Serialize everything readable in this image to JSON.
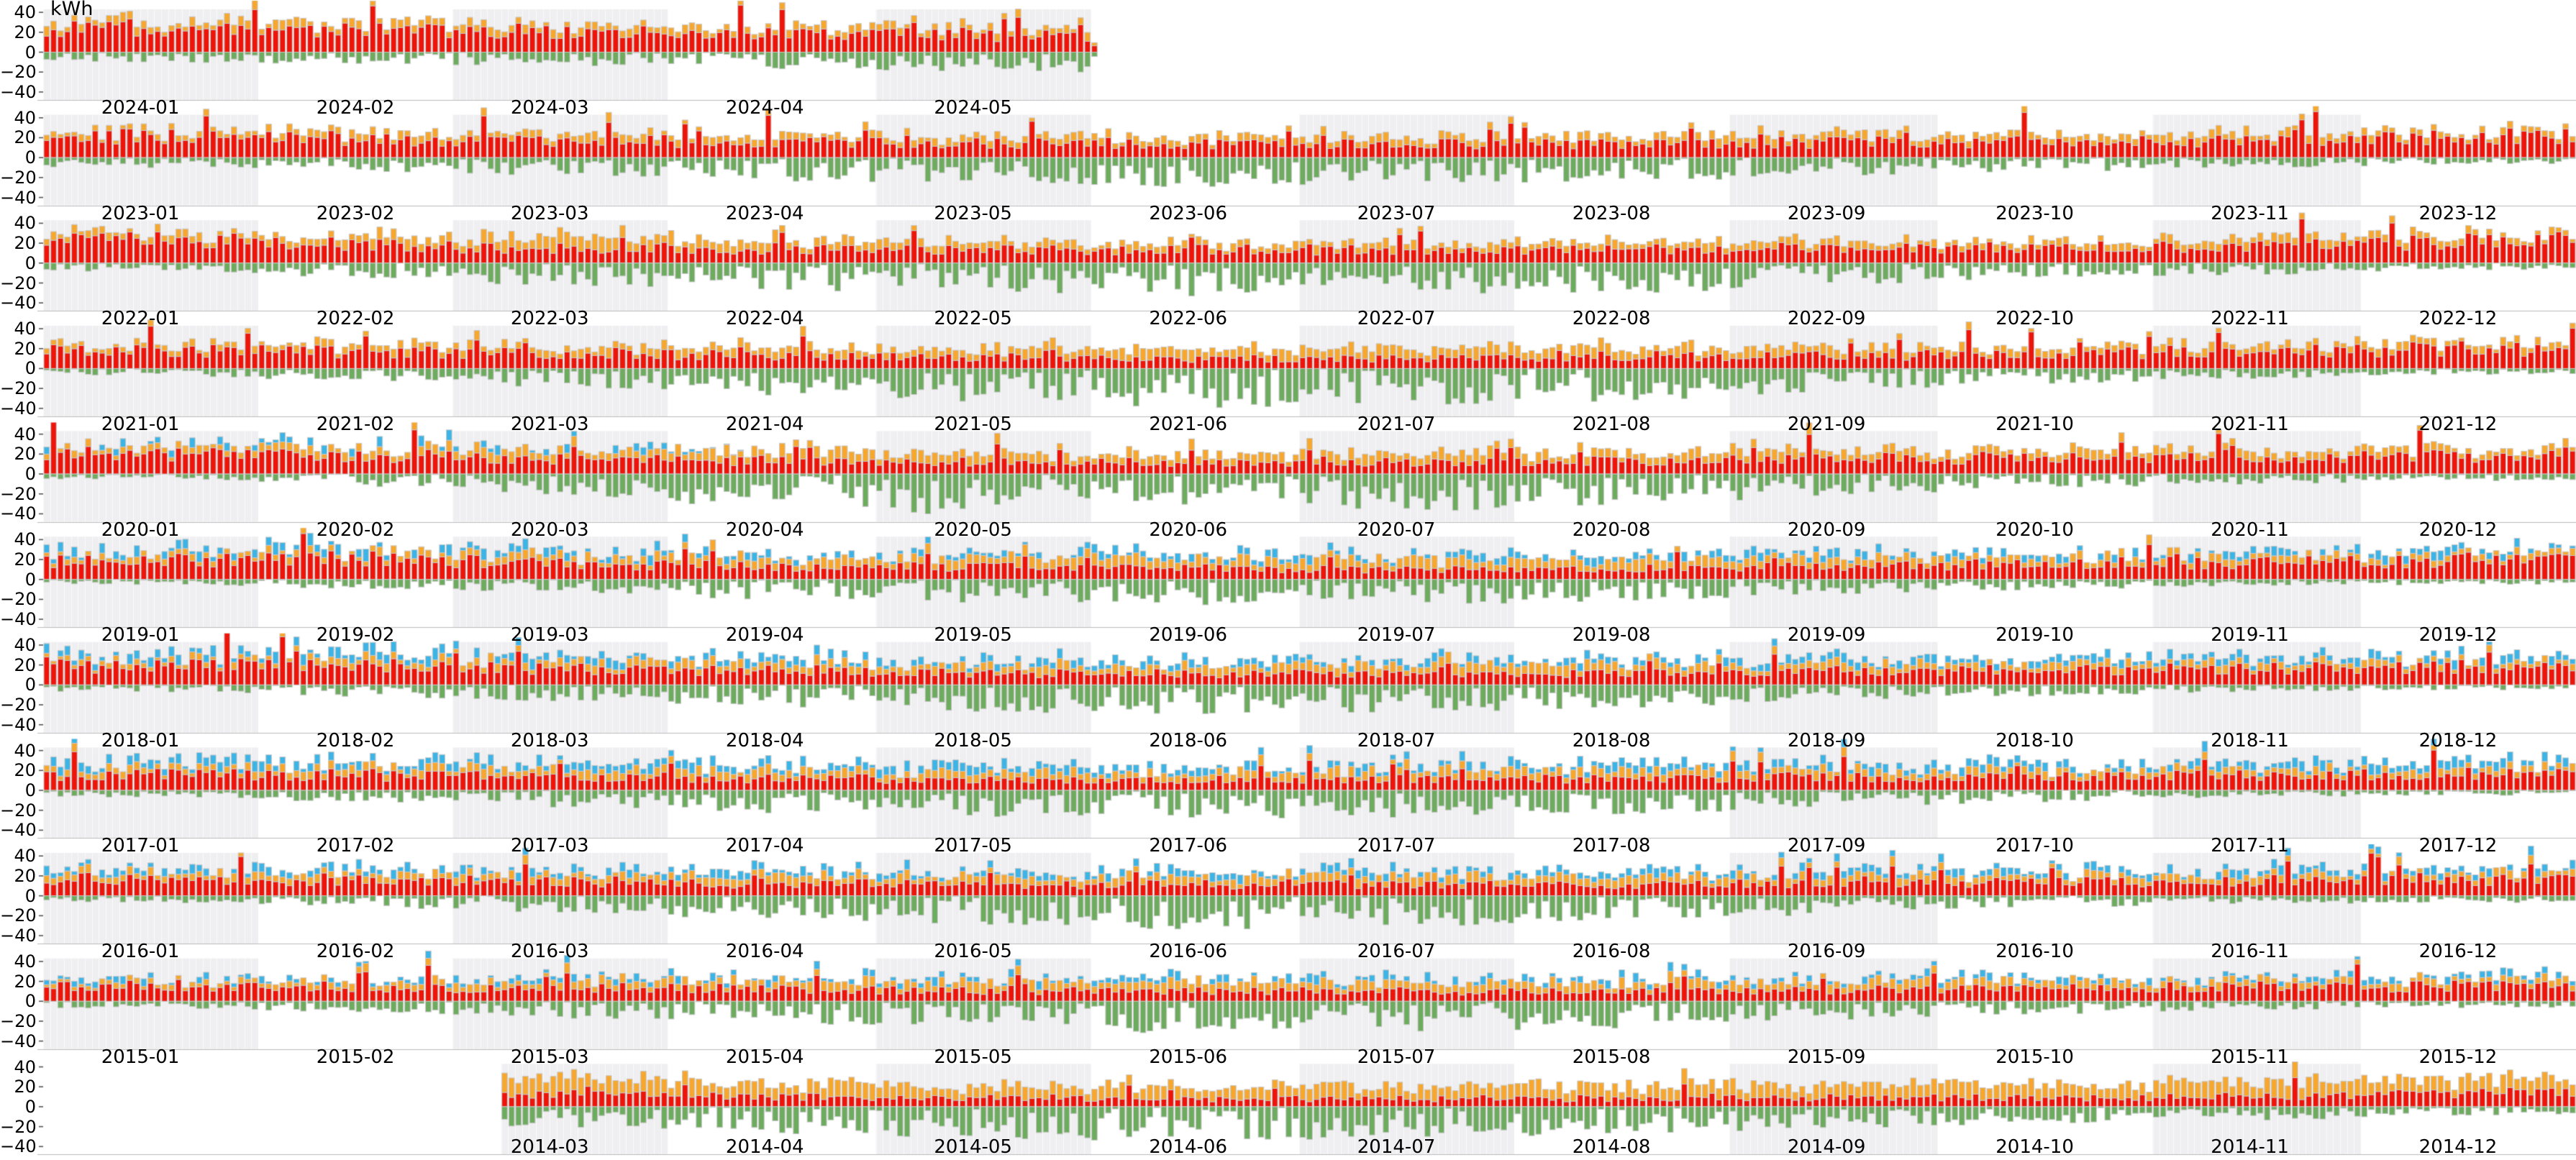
{
  "chart_data": {
    "type": "bar",
    "subtype": "stacked-daily-bars-by-year-rows",
    "title": "",
    "unit": "kWh",
    "xlabel": "",
    "ylabel": "kWh",
    "yticks": [
      40,
      20,
      0,
      -20,
      -40
    ],
    "ylim": [
      -48,
      43
    ],
    "grid": "horizontal-row-separators-only",
    "legend": "none",
    "month_shading": "odd-months-light-gray",
    "month_label_format": "YYYY-MM",
    "bar_edge_color": "#c8c8c8",
    "shade_color": "#efeff1",
    "shade_stripe_color": "rgba(255,255,255,0.65)",
    "separator_color": "#bcbcbc",
    "tick_color": "#555555",
    "series": [
      {
        "name": "consumption-red",
        "color": "#ee1409"
      },
      {
        "name": "secondary-orange",
        "color": "#f7a72e"
      },
      {
        "name": "tertiary-blue",
        "color": "#3cb4e6"
      },
      {
        "name": "production-green-negative",
        "color": "#6dab5e"
      }
    ],
    "gen": {
      "red_spike_chance": 0.045,
      "red_spike_scale": 1.6,
      "green_zero_chance": 0.08
    },
    "rows": [
      {
        "year": 2024,
        "start_day": 0,
        "end_day": 151,
        "blue_p": 0,
        "monthly": {
          "red": [
            23,
            22,
            20,
            18,
            17,
            0,
            0,
            0,
            0,
            0,
            0,
            0
          ],
          "orange": [
            7,
            7,
            6,
            6,
            6,
            0,
            0,
            0,
            0,
            0,
            0,
            0
          ],
          "blue": [
            0,
            0,
            0,
            0,
            0,
            0,
            0,
            0,
            0,
            0,
            0,
            0
          ],
          "green": [
            6,
            7,
            8,
            10,
            12,
            0,
            0,
            0,
            0,
            0,
            0,
            0
          ]
        }
      },
      {
        "year": 2023,
        "start_day": 0,
        "end_day": 364,
        "blue_p": 0,
        "monthly": {
          "red": [
            22,
            18,
            17,
            16,
            15,
            14,
            14,
            14,
            15,
            16,
            17,
            21
          ],
          "orange": [
            5,
            6,
            7,
            6,
            6,
            6,
            7,
            6,
            7,
            6,
            7,
            5
          ],
          "blue": [
            0,
            0,
            0,
            0,
            0,
            0,
            0,
            0,
            0,
            0,
            0,
            0
          ],
          "green": [
            6,
            8,
            11,
            14,
            16,
            18,
            16,
            14,
            11,
            8,
            7,
            4
          ]
        }
      },
      {
        "year": 2022,
        "start_day": 0,
        "end_day": 364,
        "blue_p": 0,
        "monthly": {
          "red": [
            23,
            18,
            15,
            13,
            13,
            13,
            13,
            14,
            15,
            16,
            17,
            22
          ],
          "orange": [
            6,
            8,
            12,
            9,
            7,
            6,
            7,
            7,
            7,
            6,
            7,
            6
          ],
          "blue": [
            0,
            0,
            0,
            0,
            0,
            0,
            0,
            0,
            0,
            0,
            0,
            0
          ],
          "green": [
            5,
            9,
            14,
            17,
            18,
            20,
            18,
            18,
            13,
            9,
            7,
            4
          ]
        }
      },
      {
        "year": 2021,
        "start_day": 0,
        "end_day": 364,
        "blue_p": 0,
        "monthly": {
          "red": [
            18,
            17,
            15,
            13,
            11,
            10,
            10,
            11,
            13,
            15,
            17,
            19
          ],
          "orange": [
            5,
            6,
            7,
            7,
            8,
            9,
            10,
            9,
            8,
            6,
            7,
            6
          ],
          "blue": [
            0,
            0,
            0,
            0,
            0,
            0,
            0,
            0,
            0,
            0,
            0,
            0
          ],
          "green": [
            4,
            8,
            11,
            16,
            20,
            24,
            22,
            20,
            15,
            9,
            6,
            4
          ]
        }
      },
      {
        "year": 2020,
        "start_day": 0,
        "end_day": 364,
        "blue_p": 0.5,
        "monthly": {
          "red": [
            20,
            18,
            15,
            13,
            12,
            12,
            12,
            13,
            15,
            16,
            17,
            19
          ],
          "orange": [
            6,
            7,
            8,
            9,
            9,
            8,
            9,
            8,
            8,
            7,
            7,
            6
          ],
          "blue": [
            6,
            7,
            6,
            0,
            0,
            0,
            0,
            0,
            0,
            0,
            0,
            0
          ],
          "green": [
            3,
            7,
            13,
            22,
            24,
            22,
            22,
            20,
            13,
            8,
            6,
            4
          ]
        }
      },
      {
        "year": 2019,
        "start_day": 0,
        "end_day": 364,
        "blue_p": 0.7,
        "monthly": {
          "red": [
            19,
            21,
            16,
            13,
            12,
            11,
            10,
            11,
            13,
            15,
            17,
            19
          ],
          "orange": [
            5,
            6,
            7,
            8,
            8,
            9,
            9,
            9,
            8,
            7,
            6,
            5
          ],
          "blue": [
            7,
            8,
            7,
            6,
            6,
            6,
            6,
            6,
            6,
            6,
            6,
            6
          ],
          "green": [
            3,
            6,
            8,
            12,
            14,
            15,
            15,
            13,
            9,
            6,
            4,
            3
          ]
        }
      },
      {
        "year": 2018,
        "start_day": 0,
        "end_day": 364,
        "blue_p": 0.8,
        "monthly": {
          "red": [
            19,
            20,
            16,
            14,
            12,
            11,
            11,
            12,
            14,
            15,
            16,
            18
          ],
          "orange": [
            5,
            6,
            6,
            7,
            7,
            8,
            8,
            8,
            7,
            6,
            6,
            5
          ],
          "blue": [
            7,
            8,
            7,
            6,
            6,
            6,
            6,
            6,
            6,
            6,
            6,
            6
          ],
          "green": [
            4,
            7,
            10,
            13,
            16,
            18,
            16,
            14,
            10,
            7,
            4,
            3
          ]
        }
      },
      {
        "year": 2017,
        "start_day": 0,
        "end_day": 364,
        "blue_p": 0.85,
        "monthly": {
          "red": [
            16,
            15,
            13,
            12,
            11,
            11,
            11,
            11,
            13,
            14,
            15,
            16
          ],
          "orange": [
            6,
            6,
            7,
            7,
            7,
            8,
            8,
            8,
            7,
            6,
            6,
            6
          ],
          "blue": [
            7,
            7,
            7,
            7,
            7,
            6,
            6,
            7,
            6,
            6,
            7,
            7
          ],
          "green": [
            4,
            7,
            11,
            14,
            16,
            18,
            16,
            14,
            10,
            7,
            4,
            3
          ]
        }
      },
      {
        "year": 2016,
        "start_day": 0,
        "end_day": 364,
        "blue_p": 0.8,
        "monthly": {
          "red": [
            16,
            16,
            14,
            12,
            11,
            11,
            11,
            11,
            12,
            14,
            15,
            16
          ],
          "orange": [
            6,
            6,
            7,
            7,
            7,
            7,
            8,
            7,
            7,
            6,
            6,
            6
          ],
          "blue": [
            6,
            6,
            6,
            6,
            6,
            6,
            6,
            6,
            6,
            6,
            6,
            6
          ],
          "green": [
            4,
            7,
            10,
            14,
            17,
            20,
            18,
            16,
            11,
            7,
            5,
            4
          ]
        }
      },
      {
        "year": 2015,
        "start_day": 0,
        "end_day": 364,
        "blue_p": 0.65,
        "monthly": {
          "red": [
            15,
            14,
            13,
            12,
            11,
            10,
            10,
            10,
            11,
            13,
            14,
            15
          ],
          "orange": [
            4,
            6,
            7,
            8,
            8,
            8,
            8,
            8,
            8,
            7,
            6,
            6
          ],
          "blue": [
            5,
            5,
            5,
            5,
            6,
            6,
            6,
            6,
            5,
            5,
            5,
            5
          ],
          "green": [
            4,
            7,
            10,
            13,
            16,
            20,
            20,
            16,
            11,
            8,
            5,
            4
          ]
        }
      },
      {
        "year": 2014,
        "start_day": 66,
        "end_day": 364,
        "blue_p": 0,
        "monthly": {
          "red": [
            0,
            0,
            12,
            10,
            9,
            8,
            8,
            8,
            9,
            9,
            10,
            14
          ],
          "orange": [
            0,
            0,
            15,
            13,
            12,
            12,
            13,
            12,
            13,
            12,
            13,
            14
          ],
          "blue": [
            0,
            0,
            0,
            0,
            0,
            0,
            0,
            0,
            0,
            0,
            0,
            0
          ],
          "green": [
            0,
            0,
            12,
            16,
            19,
            21,
            19,
            17,
            13,
            10,
            8,
            5
          ]
        }
      }
    ]
  }
}
